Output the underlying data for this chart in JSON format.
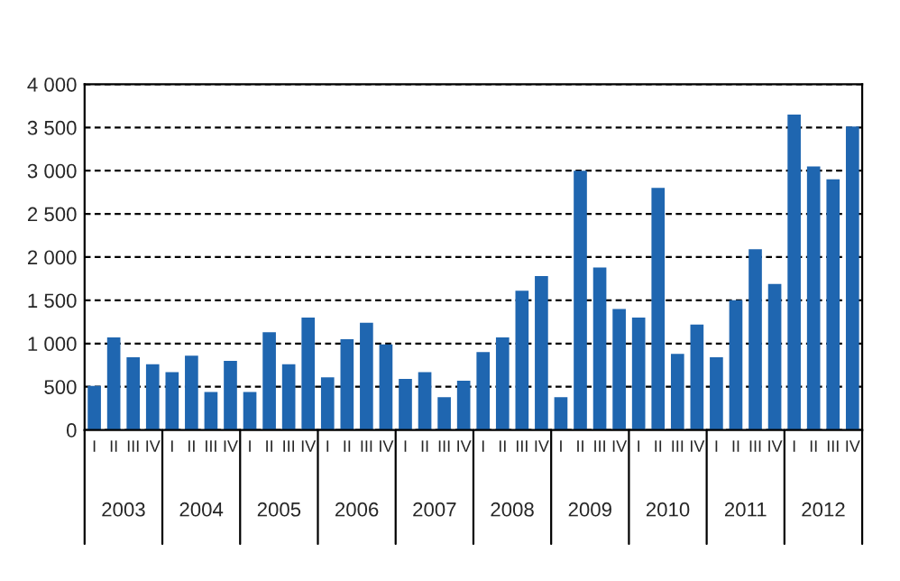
{
  "chart_data": {
    "type": "bar",
    "categories": [
      "I",
      "II",
      "III",
      "IV",
      "I",
      "II",
      "III",
      "IV",
      "I",
      "II",
      "III",
      "IV",
      "I",
      "II",
      "III",
      "IV",
      "I",
      "II",
      "III",
      "IV",
      "I",
      "II",
      "III",
      "IV",
      "I",
      "II",
      "III",
      "IV",
      "I",
      "II",
      "III",
      "IV",
      "I",
      "II",
      "III",
      "IV",
      "I",
      "II",
      "III",
      "IV"
    ],
    "values": [
      510,
      1070,
      840,
      760,
      670,
      860,
      440,
      800,
      440,
      1130,
      760,
      1300,
      610,
      1050,
      1240,
      990,
      590,
      670,
      380,
      570,
      900,
      1070,
      1610,
      1780,
      380,
      3000,
      1880,
      1400,
      1300,
      2800,
      880,
      1220,
      840,
      1500,
      2090,
      1690,
      3650,
      3050,
      2900,
      3510
    ],
    "color": "#1f66b0",
    "annotations": [
      "2003",
      "2004",
      "2005",
      "2006",
      "2007",
      "2008",
      "2009",
      "2010",
      "2011",
      "2012"
    ],
    "ylim": [
      0,
      4000
    ],
    "yticks": [
      0,
      {
        "value": 500,
        "label": "500"
      },
      {
        "value": 1000,
        "label": "1 000"
      },
      {
        "value": 1500,
        "label": "1 500"
      },
      {
        "value": 2000,
        "label": "2 000"
      },
      {
        "value": 2500,
        "label": "2 500"
      },
      {
        "value": 3000,
        "label": "3 000"
      },
      {
        "value": 3500,
        "label": "3 500"
      },
      {
        "value": 4000,
        "label": "4 000"
      }
    ],
    "grid": "y"
  }
}
